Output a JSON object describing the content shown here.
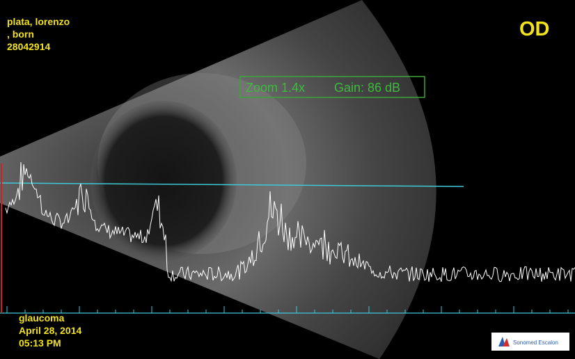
{
  "patient": {
    "name": "plata, lorenzo",
    "born": ", born",
    "id": "28042914"
  },
  "eye": "OD",
  "settings": {
    "zoom": "Zoom 1.4x",
    "gain": "Gain: 86 dB"
  },
  "footer": {
    "diagnosis": "glaucoma",
    "date": "April 28, 2014",
    "time": "05:13 PM"
  },
  "logo": "Sonomed Escalon"
}
